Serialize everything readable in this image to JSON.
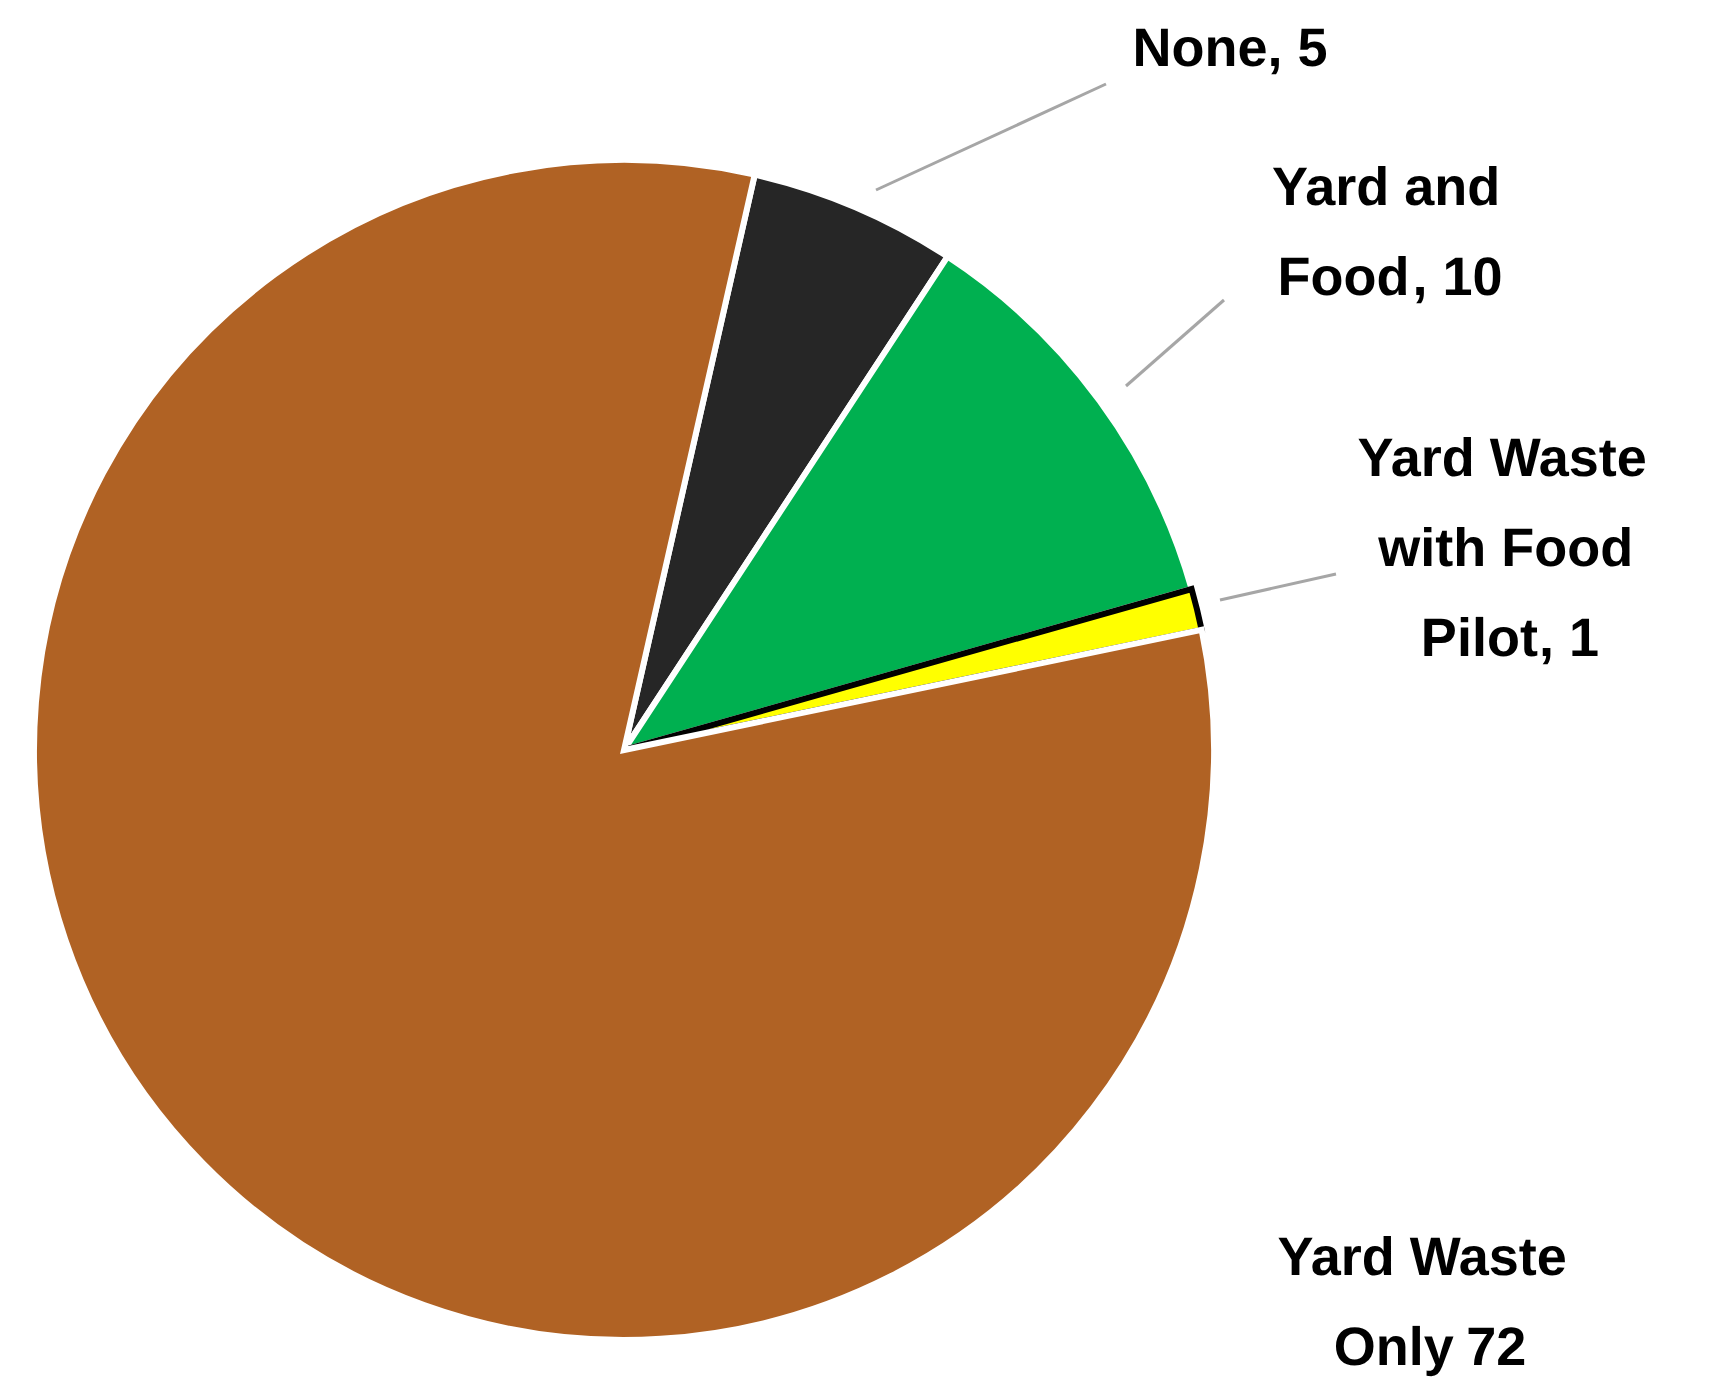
{
  "chart_data": {
    "type": "pie",
    "categories": [
      "None",
      "Yard and Food",
      "Yard Waste with Food Pilot",
      "Yard Waste Only"
    ],
    "values": [
      5,
      10,
      1,
      72
    ],
    "colors": [
      "#262626",
      "#00b050",
      "#ffff00",
      "#b06224"
    ],
    "value_labels": [
      ", 5",
      ", 10",
      ", 1",
      "72"
    ]
  }
}
